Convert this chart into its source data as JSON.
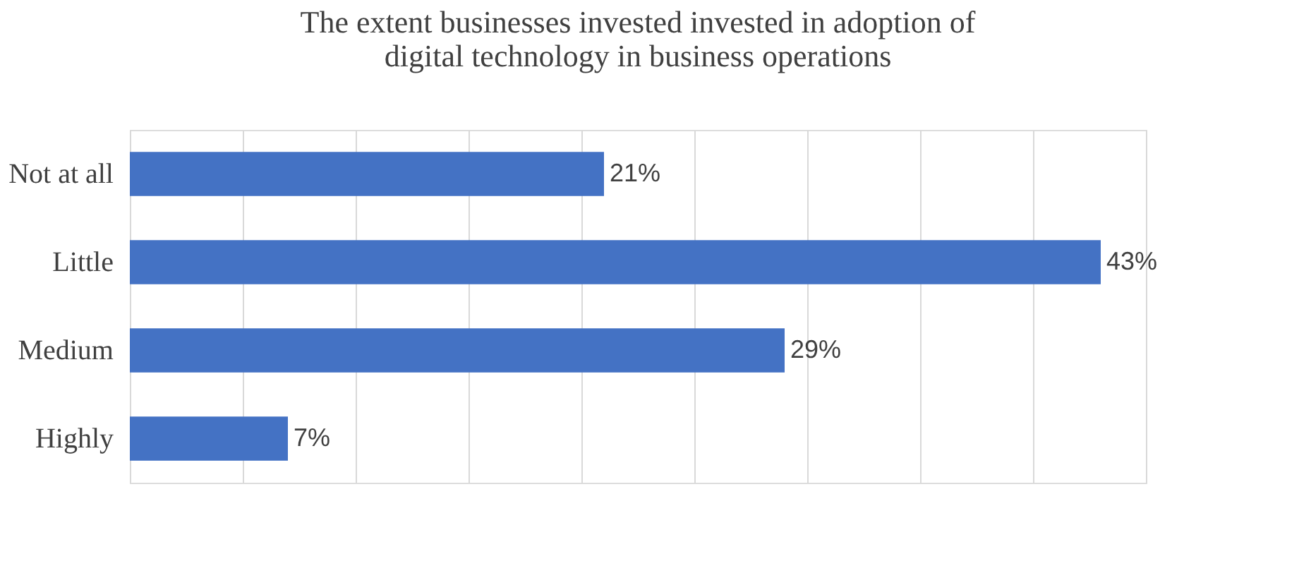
{
  "chart_data": {
    "type": "bar",
    "orientation": "horizontal",
    "title": "The extent  businesses invested  invested in adoption of digital technology in business operations",
    "categories": [
      "Not at all",
      "Little",
      "Medium",
      "Highly"
    ],
    "values": [
      21,
      43,
      29,
      7
    ],
    "value_labels": [
      "21%",
      "43%",
      "29%",
      "7%"
    ],
    "color": "#4472c4",
    "xlim": [
      0,
      45
    ],
    "xticks": [
      {
        "value": 0,
        "label": null
      },
      {
        "value": 5,
        "label": null
      },
      {
        "value": 10,
        "label": null
      },
      {
        "value": 15,
        "label": null
      },
      {
        "value": 20,
        "label": null
      },
      {
        "value": 25,
        "label": null
      },
      {
        "value": 30,
        "label": null
      },
      {
        "value": 35,
        "label": null
      },
      {
        "value": 40,
        "label": null
      },
      {
        "value": 45,
        "label": null
      }
    ],
    "grid": "x",
    "tick_labels": false
  }
}
